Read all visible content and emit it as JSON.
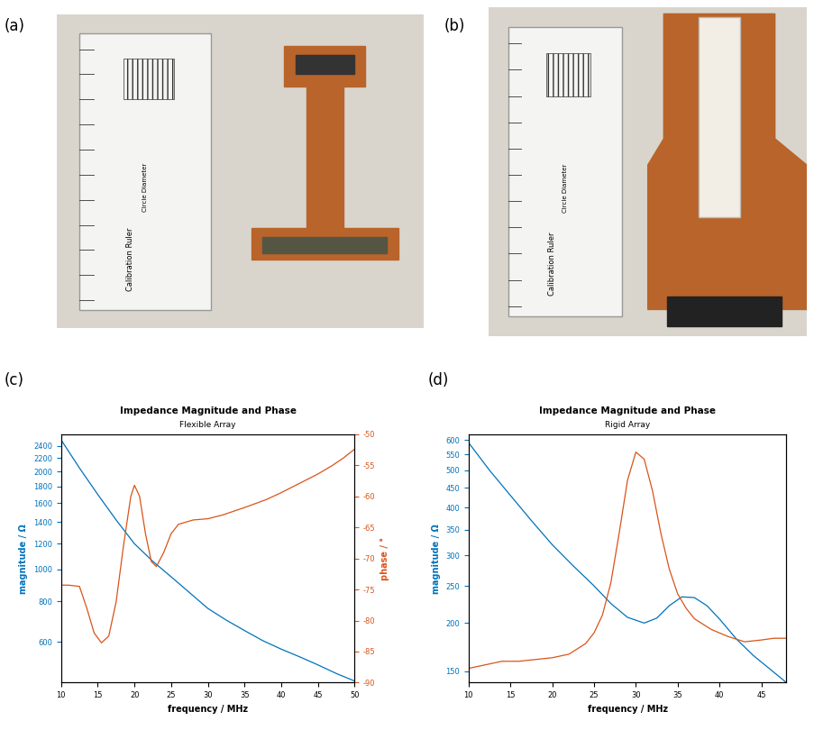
{
  "photos": [
    {
      "panel": "(a)",
      "texts": [
        "Calibration Ruler",
        "Circle Diameter"
      ]
    },
    {
      "panel": "(b)",
      "texts": [
        "Calibration Ruler",
        "Circle Diameter"
      ]
    }
  ],
  "chart_data": [
    {
      "panel": "(c)",
      "type": "line",
      "title": "Impedance Magnitude and Phase",
      "subtitle": "Flexible Array",
      "x_label": "frequency / MHz",
      "y_label": "magnitude / Ω",
      "y2_label": "phase / °",
      "log": "y",
      "xlim": [
        10,
        50
      ],
      "xticks": [
        10,
        15,
        20,
        25,
        30,
        35,
        40,
        45,
        50
      ],
      "ylim": [
        450,
        2600
      ],
      "yticks": [
        600,
        800,
        1000,
        1200,
        1400,
        1600,
        1800,
        2000,
        2200,
        2400
      ],
      "y2lim": [
        -90,
        -50
      ],
      "y2ticks": [
        -90,
        -85,
        -80,
        -75,
        -70,
        -65,
        -60,
        -55,
        -50
      ],
      "series": [
        {
          "name": "magnitude",
          "color": "#0072bd",
          "x": [
            10,
            12.5,
            15,
            17.5,
            20,
            22.5,
            25,
            27.5,
            30,
            32.5,
            35,
            37.5,
            40,
            42.5,
            45,
            47.5,
            50
          ],
          "values": [
            2500,
            2050,
            1700,
            1420,
            1200,
            1060,
            950,
            850,
            760,
            700,
            650,
            605,
            570,
            540,
            510,
            480,
            455
          ]
        },
        {
          "name": "phase",
          "axis": "y2",
          "color": "#d95319",
          "x": [
            10,
            11,
            12.5,
            13.5,
            14.5,
            15.5,
            16.5,
            17.5,
            18.5,
            19.5,
            20,
            20.7,
            21.5,
            22.3,
            23,
            24,
            25,
            26,
            28,
            30,
            32,
            35,
            38,
            40,
            42,
            45,
            47,
            48.5,
            50
          ],
          "values": [
            -74.3,
            -74.3,
            -74.5,
            -78,
            -82,
            -83.6,
            -82.5,
            -77,
            -68,
            -60,
            -58.2,
            -60,
            -66,
            -70.5,
            -71.3,
            -69,
            -66,
            -64.5,
            -63.8,
            -63.6,
            -63,
            -61.8,
            -60.5,
            -59.4,
            -58.2,
            -56.4,
            -55,
            -53.8,
            -52.4
          ]
        }
      ]
    },
    {
      "panel": "(d)",
      "type": "line",
      "title": "Impedance Magnitude and Phase",
      "subtitle": "Rigid Array",
      "x_label": "frequency / MHz",
      "y_label": "magnitude / Ω",
      "log": "y",
      "xlim": [
        10,
        48
      ],
      "xticks": [
        10,
        15,
        20,
        25,
        30,
        35,
        40,
        45
      ],
      "ylim": [
        140,
        620
      ],
      "yticks": [
        150,
        200,
        250,
        300,
        350,
        400,
        450,
        500,
        550,
        600
      ],
      "y2lim": [
        -90,
        -20
      ],
      "series": [
        {
          "name": "magnitude",
          "color": "#0072bd",
          "x": [
            10,
            12.5,
            15,
            17.5,
            20,
            22.5,
            25,
            27,
            29,
            31,
            32.5,
            34,
            35.5,
            37,
            38.5,
            40,
            42,
            44,
            46,
            48
          ],
          "values": [
            590,
            500,
            430,
            370,
            320,
            282,
            250,
            225,
            207,
            200,
            206,
            222,
            234,
            233,
            222,
            205,
            182,
            165,
            152,
            140
          ]
        },
        {
          "name": "phase",
          "axis": "y2",
          "color": "#d95319",
          "x": [
            10,
            12,
            14,
            16,
            18,
            20,
            22,
            24,
            25,
            26,
            27,
            28,
            29,
            30,
            31,
            32,
            33,
            34,
            35,
            36,
            37,
            39,
            41,
            43,
            45,
            46.5,
            48
          ],
          "values": [
            -86,
            -85,
            -84,
            -84,
            -83.5,
            -83,
            -82,
            -79,
            -76,
            -71,
            -62,
            -48,
            -33,
            -25,
            -27,
            -36,
            -48,
            -58,
            -65,
            -69,
            -72,
            -75,
            -77,
            -78.5,
            -78,
            -77.5,
            -77.5
          ]
        }
      ]
    }
  ]
}
